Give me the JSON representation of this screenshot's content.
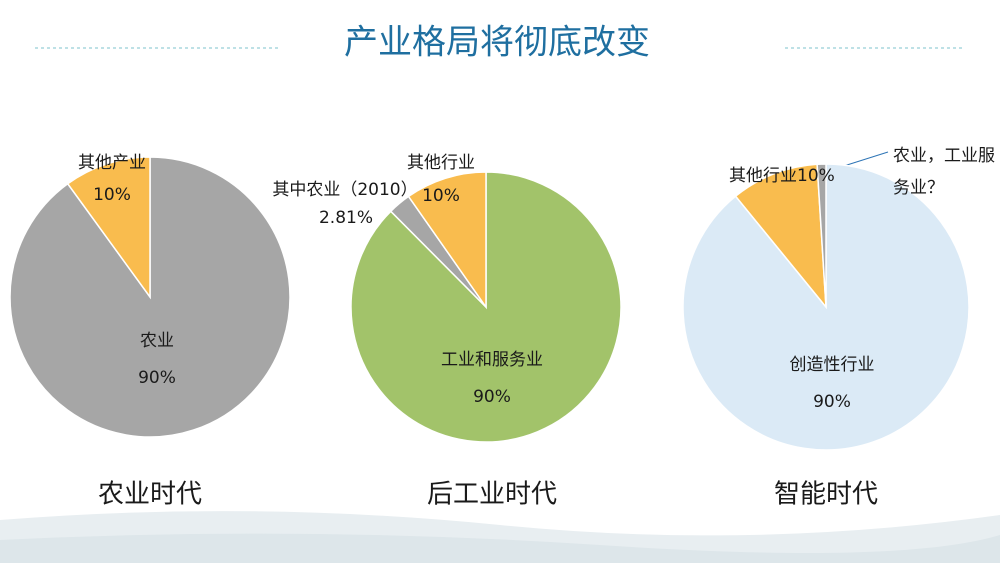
{
  "title": "产业格局将彻底改变",
  "chart_data": [
    {
      "type": "pie",
      "caption": "农业时代",
      "categories": [
        "农业",
        "其他产业"
      ],
      "values": [
        90,
        10
      ],
      "value_labels": [
        "90%",
        "10%"
      ],
      "colors": [
        "#a6a6a6",
        "#f9bc4e"
      ]
    },
    {
      "type": "pie",
      "caption": "后工业时代",
      "categories": [
        "工业和服务业",
        "其中农业（2010）",
        "其他行业"
      ],
      "values": [
        90,
        2.81,
        10
      ],
      "value_labels": [
        "90%",
        "2.81%",
        "10%"
      ],
      "colors": [
        "#a2c36a",
        "#a6a6a6",
        "#f9bc4e"
      ]
    },
    {
      "type": "pie",
      "caption": "智能时代",
      "categories": [
        "创造性行业",
        "其他行业",
        "农业，工业服务业？"
      ],
      "values": [
        90,
        10,
        1
      ],
      "value_labels": [
        "90%",
        "10%",
        null
      ],
      "colors": [
        "#dbeaf6",
        "#f9bc4e",
        "#a6a6a6"
      ]
    }
  ]
}
